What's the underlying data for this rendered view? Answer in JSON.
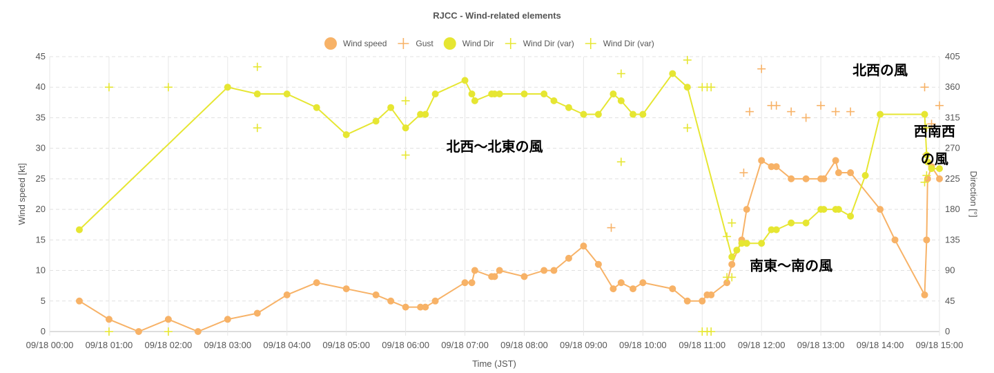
{
  "chart_data": {
    "type": "line",
    "title": "RJCC - Wind-related elements",
    "xlabel": "Time (JST)",
    "ylabel": "Wind speed [kt]",
    "y2label": "Direction [°]",
    "ylim": [
      0,
      45
    ],
    "y2lim": [
      0,
      405
    ],
    "xlim": [
      "09/18 00:00",
      "09/18 15:00"
    ],
    "x_ticks": [
      "09/18 00:00",
      "09/18 01:00",
      "09/18 02:00",
      "09/18 03:00",
      "09/18 04:00",
      "09/18 05:00",
      "09/18 06:00",
      "09/18 07:00",
      "09/18 08:00",
      "09/18 09:00",
      "09/18 10:00",
      "09/18 11:00",
      "09/18 12:00",
      "09/18 13:00",
      "09/18 14:00",
      "09/18 15:00"
    ],
    "y_ticks": [
      0,
      5,
      10,
      15,
      20,
      25,
      30,
      35,
      40,
      45
    ],
    "y2_ticks": [
      0,
      45,
      90,
      135,
      180,
      225,
      270,
      315,
      360,
      405
    ],
    "grid": true,
    "legend_position": "top",
    "colors": {
      "speed": "#f7b267",
      "dir": "#e6e632",
      "gust": "#f7b267",
      "var": "#e6e632"
    },
    "series": [
      {
        "name": "Wind speed",
        "axis": "left",
        "style": "line-circle",
        "points": [
          [
            "09/18 00:30",
            5
          ],
          [
            "09/18 01:00",
            2
          ],
          [
            "09/18 01:30",
            0
          ],
          [
            "09/18 02:00",
            2
          ],
          [
            "09/18 02:30",
            0
          ],
          [
            "09/18 03:00",
            2
          ],
          [
            "09/18 03:30",
            3
          ],
          [
            "09/18 04:00",
            6
          ],
          [
            "09/18 04:30",
            8
          ],
          [
            "09/18 05:00",
            7
          ],
          [
            "09/18 05:30",
            6
          ],
          [
            "09/18 05:45",
            5
          ],
          [
            "09/18 06:00",
            4
          ],
          [
            "09/18 06:15",
            4
          ],
          [
            "09/18 06:20",
            4
          ],
          [
            "09/18 06:30",
            5
          ],
          [
            "09/18 07:00",
            8
          ],
          [
            "09/18 07:07",
            8
          ],
          [
            "09/18 07:10",
            10
          ],
          [
            "09/18 07:27",
            9
          ],
          [
            "09/18 07:30",
            9
          ],
          [
            "09/18 07:35",
            10
          ],
          [
            "09/18 08:00",
            9
          ],
          [
            "09/18 08:20",
            10
          ],
          [
            "09/18 08:30",
            10
          ],
          [
            "09/18 08:45",
            12
          ],
          [
            "09/18 09:00",
            14
          ],
          [
            "09/18 09:15",
            11
          ],
          [
            "09/18 09:30",
            7
          ],
          [
            "09/18 09:38",
            8
          ],
          [
            "09/18 09:50",
            7
          ],
          [
            "09/18 10:00",
            8
          ],
          [
            "09/18 10:30",
            7
          ],
          [
            "09/18 10:45",
            5
          ],
          [
            "09/18 11:00",
            5
          ],
          [
            "09/18 11:05",
            6
          ],
          [
            "09/18 11:09",
            6
          ],
          [
            "09/18 11:25",
            8
          ],
          [
            "09/18 11:30",
            11
          ],
          [
            "09/18 11:40",
            15
          ],
          [
            "09/18 11:45",
            20
          ],
          [
            "09/18 12:00",
            28
          ],
          [
            "09/18 12:10",
            27
          ],
          [
            "09/18 12:15",
            27
          ],
          [
            "09/18 12:30",
            25
          ],
          [
            "09/18 12:45",
            25
          ],
          [
            "09/18 13:00",
            25
          ],
          [
            "09/18 13:03",
            25
          ],
          [
            "09/18 13:15",
            28
          ],
          [
            "09/18 13:18",
            26
          ],
          [
            "09/18 13:30",
            26
          ],
          [
            "09/18 14:00",
            20
          ],
          [
            "09/18 14:15",
            15
          ],
          [
            "09/18 14:45",
            6
          ],
          [
            "09/18 14:47",
            15
          ],
          [
            "09/18 14:48",
            25
          ],
          [
            "09/18 14:52",
            27
          ],
          [
            "09/18 15:00",
            25
          ]
        ]
      },
      {
        "name": "Gust",
        "axis": "left",
        "style": "cross",
        "points": [
          [
            "09/18 09:28",
            17
          ],
          [
            "09/18 11:42",
            26
          ],
          [
            "09/18 11:48",
            36
          ],
          [
            "09/18 12:00",
            43
          ],
          [
            "09/18 12:10",
            37
          ],
          [
            "09/18 12:15",
            37
          ],
          [
            "09/18 12:30",
            36
          ],
          [
            "09/18 12:45",
            35
          ],
          [
            "09/18 13:00",
            37
          ],
          [
            "09/18 13:15",
            36
          ],
          [
            "09/18 13:30",
            36
          ],
          [
            "09/18 14:45",
            40
          ],
          [
            "09/18 14:47",
            29
          ],
          [
            "09/18 14:52",
            34
          ],
          [
            "09/18 15:00",
            37
          ]
        ]
      },
      {
        "name": "Wind Dir",
        "axis": "right",
        "style": "line-circle",
        "points": [
          [
            "09/18 00:30",
            150
          ],
          [
            "09/18 03:00",
            360
          ],
          [
            "09/18 03:30",
            350
          ],
          [
            "09/18 04:00",
            350
          ],
          [
            "09/18 04:30",
            330
          ],
          [
            "09/18 05:00",
            290
          ],
          [
            "09/18 05:30",
            310
          ],
          [
            "09/18 05:45",
            330
          ],
          [
            "09/18 06:00",
            300
          ],
          [
            "09/18 06:15",
            320
          ],
          [
            "09/18 06:20",
            320
          ],
          [
            "09/18 06:30",
            350
          ],
          [
            "09/18 07:00",
            370
          ],
          [
            "09/18 07:07",
            350
          ],
          [
            "09/18 07:10",
            340
          ],
          [
            "09/18 07:27",
            350
          ],
          [
            "09/18 07:30",
            350
          ],
          [
            "09/18 07:35",
            350
          ],
          [
            "09/18 08:00",
            350
          ],
          [
            "09/18 08:20",
            350
          ],
          [
            "09/18 08:30",
            340
          ],
          [
            "09/18 08:45",
            330
          ],
          [
            "09/18 09:00",
            320
          ],
          [
            "09/18 09:15",
            320
          ],
          [
            "09/18 09:30",
            350
          ],
          [
            "09/18 09:38",
            340
          ],
          [
            "09/18 09:50",
            320
          ],
          [
            "09/18 10:00",
            320
          ],
          [
            "09/18 10:30",
            380
          ],
          [
            "09/18 10:45",
            360
          ],
          [
            "09/18 11:30",
            110
          ],
          [
            "09/18 11:35",
            120
          ],
          [
            "09/18 11:40",
            130
          ],
          [
            "09/18 11:45",
            130
          ],
          [
            "09/18 12:00",
            130
          ],
          [
            "09/18 12:10",
            150
          ],
          [
            "09/18 12:15",
            150
          ],
          [
            "09/18 12:30",
            160
          ],
          [
            "09/18 12:45",
            160
          ],
          [
            "09/18 13:00",
            180
          ],
          [
            "09/18 13:03",
            180
          ],
          [
            "09/18 13:15",
            180
          ],
          [
            "09/18 13:18",
            180
          ],
          [
            "09/18 13:30",
            170
          ],
          [
            "09/18 13:45",
            230
          ],
          [
            "09/18 14:00",
            320
          ],
          [
            "09/18 14:45",
            320
          ],
          [
            "09/18 14:47",
            260
          ],
          [
            "09/18 14:48",
            250
          ],
          [
            "09/18 14:52",
            240
          ],
          [
            "09/18 15:00",
            240
          ]
        ]
      },
      {
        "name": "Wind Dir (var)",
        "axis": "right",
        "style": "cross",
        "points": [
          [
            "09/18 01:00",
            360
          ],
          [
            "09/18 02:00",
            360
          ],
          [
            "09/18 03:30",
            300
          ],
          [
            "09/18 06:00",
            260
          ],
          [
            "09/18 09:38",
            250
          ],
          [
            "09/18 10:45",
            300
          ],
          [
            "09/18 11:00",
            360
          ],
          [
            "09/18 11:05",
            360
          ],
          [
            "09/18 11:09",
            360
          ],
          [
            "09/18 11:25",
            80
          ],
          [
            "09/18 11:25",
            140
          ],
          [
            "09/18 11:30",
            80
          ],
          [
            "09/18 11:30",
            160
          ],
          [
            "09/18 14:45",
            220
          ],
          [
            "09/18 14:47",
            230
          ]
        ]
      },
      {
        "name": "Wind Dir (var)",
        "axis": "right",
        "style": "cross",
        "points": [
          [
            "09/18 01:00",
            0
          ],
          [
            "09/18 02:00",
            0
          ],
          [
            "09/18 03:30",
            390
          ],
          [
            "09/18 06:00",
            340
          ],
          [
            "09/18 09:38",
            380
          ],
          [
            "09/18 10:45",
            400
          ],
          [
            "09/18 11:00",
            0
          ],
          [
            "09/18 11:05",
            0
          ],
          [
            "09/18 11:09",
            0
          ],
          [
            "09/18 14:47",
            300
          ]
        ]
      }
    ],
    "annotations": [
      {
        "text": "北西の風",
        "x": "09/18 14:00",
        "y_kt": 42
      },
      {
        "text": "北西～北東の風",
        "x": "09/18 07:30",
        "y_kt": 29.5
      },
      {
        "text": "西南西",
        "x": "09/18 14:55",
        "y_kt": 32
      },
      {
        "text": "の風",
        "x": "09/18 14:55",
        "y_kt": 27.5
      },
      {
        "text": "南東～南の風",
        "x": "09/18 12:30",
        "y_kt": 10
      }
    ]
  }
}
